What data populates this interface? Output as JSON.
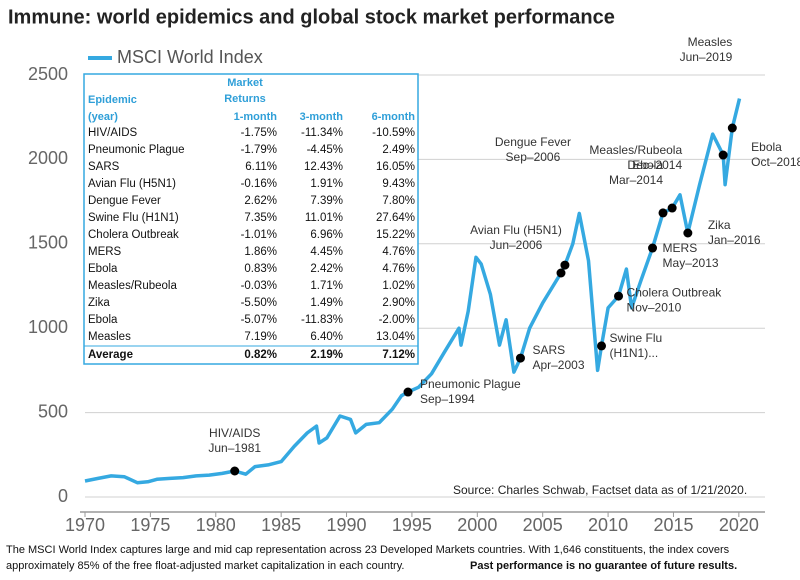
{
  "chart_data": {
    "type": "line",
    "title": "Immune: world epidemics and global stock market performance",
    "xlim": [
      1970,
      2022
    ],
    "xticks": [
      1970,
      1975,
      1980,
      1985,
      1990,
      1995,
      2000,
      2005,
      2010,
      2015,
      2020
    ],
    "ylim": [
      0,
      2500
    ],
    "yticks": [
      0,
      500,
      1000,
      1500,
      2000,
      2500
    ],
    "grid": true,
    "legend": "top-left",
    "series": [
      {
        "name": "MSCI World Index",
        "color": "#35a9e1",
        "x": [
          1970,
          1971,
          1972,
          1973,
          1974,
          1974.8,
          1975.5,
          1976.5,
          1977.5,
          1978.5,
          1979.5,
          1980.5,
          1981.45,
          1982.3,
          1983,
          1984,
          1985,
          1986,
          1987,
          1987.7,
          1987.9,
          1988.5,
          1989.5,
          1990.3,
          1990.7,
          1991.5,
          1992.5,
          1993.5,
          1994.2,
          1994.7,
          1995.5,
          1996.5,
          1997.5,
          1998.6,
          1998.75,
          1999.3,
          1999.9,
          2000.3,
          2001,
          2001.7,
          2002.2,
          2002.8,
          2003.3,
          2004,
          2005,
          2006.4,
          2006.7,
          2007.3,
          2007.8,
          2008.5,
          2009.2,
          2009.5,
          2010,
          2010.8,
          2011.4,
          2011.8,
          2012.5,
          2013.4,
          2014.2,
          2014.9,
          2015.5,
          2016.1,
          2017,
          2018,
          2018.8,
          2018.95,
          2019.5,
          2020.05
        ],
        "values": [
          95,
          110,
          125,
          120,
          85,
          90,
          105,
          110,
          115,
          125,
          130,
          140,
          154,
          135,
          180,
          190,
          210,
          300,
          380,
          420,
          320,
          350,
          480,
          460,
          380,
          430,
          440,
          520,
          600,
          622,
          650,
          730,
          860,
          1000,
          900,
          1100,
          1420,
          1380,
          1200,
          900,
          1050,
          740,
          823,
          1000,
          1150,
          1327,
          1374,
          1500,
          1680,
          1400,
          750,
          895,
          1120,
          1190,
          1350,
          1120,
          1280,
          1475,
          1683,
          1712,
          1790,
          1564,
          1850,
          2150,
          2026,
          1850,
          2186,
          2360
        ]
      }
    ],
    "annotations": [
      {
        "x": 1981.45,
        "y": 154,
        "lines": [
          "HIV/AIDS",
          "Jun–1981"
        ]
      },
      {
        "x": 1994.7,
        "y": 622,
        "lines": [
          "Pneumonic Plague",
          "Sep–1994"
        ]
      },
      {
        "x": 2003.3,
        "y": 823,
        "lines": [
          "SARS",
          "Apr–2003"
        ]
      },
      {
        "x": 2006.4,
        "y": 1327,
        "lines": [
          "Avian Flu (H5N1)",
          "Jun–2006"
        ]
      },
      {
        "x": 2006.7,
        "y": 1374,
        "lines": [
          "Dengue Fever",
          "Sep–2006"
        ]
      },
      {
        "x": 2009.5,
        "y": 895,
        "lines": [
          "Swine Flu",
          "(H1N1)..."
        ]
      },
      {
        "x": 2010.8,
        "y": 1190,
        "lines": [
          "Cholera Outbreak",
          "Nov–2010"
        ]
      },
      {
        "x": 2013.4,
        "y": 1475,
        "lines": [
          "MERS",
          "May–2013"
        ]
      },
      {
        "x": 2014.2,
        "y": 1683,
        "lines": [
          "Ebola",
          "Mar–2014"
        ]
      },
      {
        "x": 2014.9,
        "y": 1712,
        "lines": [
          "Measles/Rubeola",
          "Dec–2014"
        ]
      },
      {
        "x": 2016.1,
        "y": 1564,
        "lines": [
          "Zika",
          "Jan–2016"
        ]
      },
      {
        "x": 2018.8,
        "y": 2026,
        "lines": [
          "Ebola",
          "Oct–2018"
        ]
      },
      {
        "x": 2019.5,
        "y": 2186,
        "lines": [
          "Measles",
          "Jun–2019"
        ]
      }
    ],
    "source": "Source: Charles Schwab, Factset data as of 1/21/2020."
  },
  "table": {
    "head": {
      "epidemic": [
        "Epidemic",
        "(year)"
      ],
      "group": [
        "Market",
        "Returns"
      ],
      "columns": [
        "1-month",
        "3-month",
        "6-month"
      ]
    },
    "rows": [
      [
        "HIV/AIDS",
        "-1.75%",
        "-11.34%",
        "-10.59%"
      ],
      [
        "Pneumonic Plague",
        "-1.79%",
        "-4.45%",
        "2.49%"
      ],
      [
        "SARS",
        "6.11%",
        "12.43%",
        "16.05%"
      ],
      [
        "Avian Flu (H5N1)",
        "-0.16%",
        "1.91%",
        "9.43%"
      ],
      [
        "Dengue Fever",
        "2.62%",
        "7.39%",
        "7.80%"
      ],
      [
        "Swine Flu (H1N1)",
        "7.35%",
        "11.01%",
        "27.64%"
      ],
      [
        "Cholera Outbreak",
        "-1.01%",
        "6.96%",
        "15.22%"
      ],
      [
        "MERS",
        "1.86%",
        "4.45%",
        "4.76%"
      ],
      [
        "Ebola",
        "0.83%",
        "2.42%",
        "4.76%"
      ],
      [
        "Measles/Rubeola",
        "-0.03%",
        "1.71%",
        "1.02%"
      ],
      [
        "Zika",
        "-5.50%",
        "1.49%",
        "2.90%"
      ],
      [
        "Ebola",
        "-5.07%",
        "-11.83%",
        "-2.00%"
      ],
      [
        "Measles",
        "7.19%",
        "6.40%",
        "13.04%"
      ]
    ],
    "average": [
      "Average",
      "0.82%",
      "2.19%",
      "7.12%"
    ]
  },
  "footer": {
    "lines": [
      "The MSCI World Index captures large and mid cap representation across 23 Developed Markets countries. With 1,646 constituents, the index covers",
      "approximately 85% of the free float-adjusted market capitalization in each country."
    ],
    "disclaimer": "Past performance is no guarantee of future results."
  }
}
